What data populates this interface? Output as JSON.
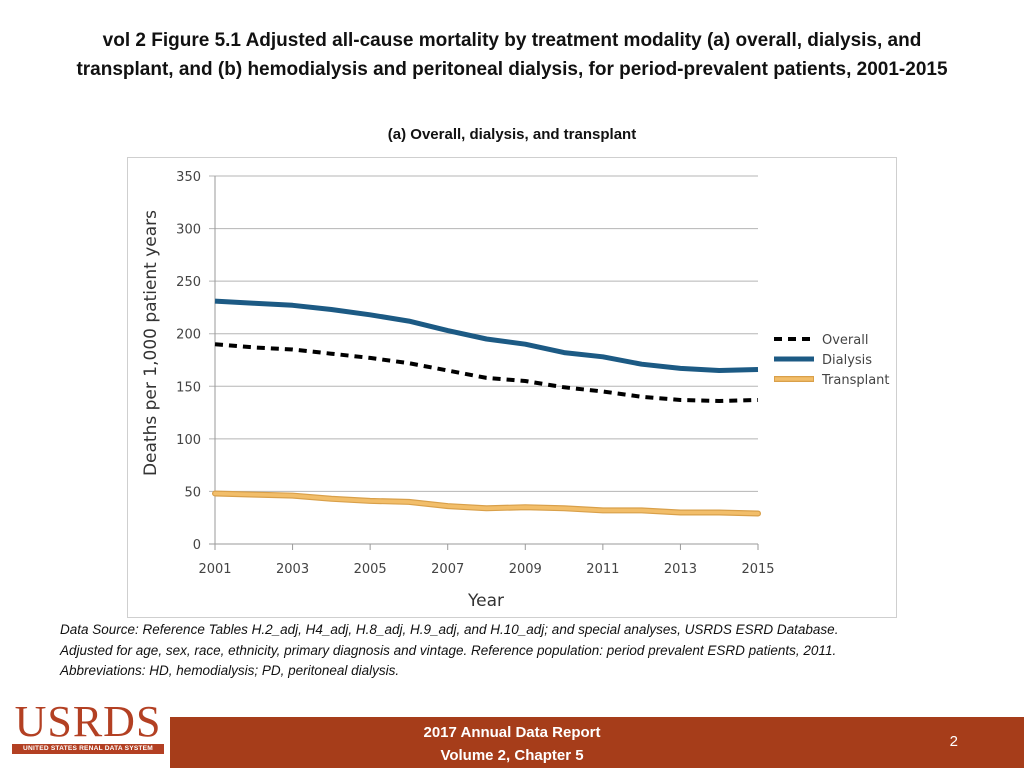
{
  "page": {
    "title_line1": "vol 2 Figure 5.1 Adjusted all-cause mortality by treatment modality (a) overall, dialysis, and",
    "title_line2": "transplant, and (b) hemodialysis and peritoneal dialysis, for period-prevalent patients, 2001-2015",
    "subtitle": "(a) Overall, dialysis, and transplant",
    "source_lines": [
      "Data Source: Reference Tables H.2_adj, H4_adj, H.8_adj, H.9_adj, and H.10_adj; and special analyses, USRDS ESRD Database.",
      "Adjusted for age, sex, race, ethnicity, primary diagnosis and vintage. Reference population: period prevalent ESRD patients, 2011.",
      "Abbreviations: HD, hemodialysis; PD, peritoneal dialysis."
    ],
    "logo_text": "USRDS",
    "logo_subtext": "UNITED STATES RENAL DATA SYSTEM",
    "footer_line1": "2017 Annual Data Report",
    "footer_line2": "Volume 2, Chapter 5",
    "page_number": "2"
  },
  "colors": {
    "overall": "#000000",
    "dialysis": "#1c5a84",
    "transplant": "#f2be6a",
    "transplant_outline": "#d9a04a",
    "footer": "#a63d1a",
    "logo": "#b34023"
  },
  "chart_data": {
    "type": "line",
    "title": "(a) Overall, dialysis, and transplant",
    "xlabel": "Year",
    "ylabel": "Deaths per 1,000 patient years",
    "x": [
      2001,
      2002,
      2003,
      2004,
      2005,
      2006,
      2007,
      2008,
      2009,
      2010,
      2011,
      2012,
      2013,
      2014,
      2015
    ],
    "xticks": [
      "2001",
      "2003",
      "2005",
      "2007",
      "2009",
      "2011",
      "2013",
      "2015"
    ],
    "yticks": [
      "0",
      "50",
      "100",
      "150",
      "200",
      "250",
      "300",
      "350"
    ],
    "ylim": [
      0,
      350
    ],
    "xlim": [
      2001,
      2015
    ],
    "grid": true,
    "legend_position": "right",
    "series": [
      {
        "name": "Overall",
        "style": "dashed",
        "values": [
          190,
          187,
          185,
          181,
          177,
          172,
          165,
          158,
          155,
          149,
          145,
          140,
          137,
          136,
          137
        ]
      },
      {
        "name": "Dialysis",
        "style": "solid",
        "values": [
          231,
          229,
          227,
          223,
          218,
          212,
          203,
          195,
          190,
          182,
          178,
          171,
          167,
          165,
          166
        ]
      },
      {
        "name": "Transplant",
        "style": "solid",
        "values": [
          48,
          47,
          46,
          43,
          41,
          40,
          36,
          34,
          35,
          34,
          32,
          32,
          30,
          30,
          29
        ]
      }
    ]
  }
}
